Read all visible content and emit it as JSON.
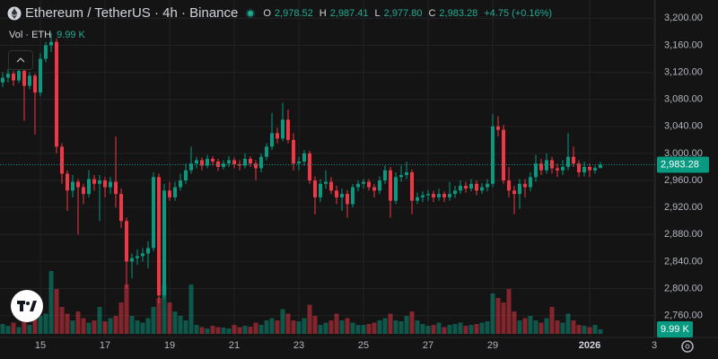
{
  "header": {
    "symbol": "Ethereum / TetherUS · 4h · Binance",
    "o_key": "O",
    "open": "2,978.52",
    "h_key": "H",
    "high": "2,987.41",
    "l_key": "L",
    "low": "2,977.80",
    "c_key": "C",
    "close": "2,983.28",
    "change": "+4.75 (+0.16%)",
    "vol_title": "Vol · ETH",
    "vol_value": "9.99 K"
  },
  "chart_data": {
    "type": "candlestick",
    "ylim": [
      2729,
      3227
    ],
    "yticks": [
      {
        "value": 3200,
        "label": "3,200.00"
      },
      {
        "value": 3160,
        "label": "3,160.00"
      },
      {
        "value": 3120,
        "label": "3,120.00"
      },
      {
        "value": 3080,
        "label": "3,080.00"
      },
      {
        "value": 3040,
        "label": "3,040.00"
      },
      {
        "value": 3000,
        "label": "3,000.00"
      },
      {
        "value": 2960,
        "label": "2,960.00"
      },
      {
        "value": 2920,
        "label": "2,920.00"
      },
      {
        "value": 2880,
        "label": "2,880.00"
      },
      {
        "value": 2840,
        "label": "2,840.00"
      },
      {
        "value": 2800,
        "label": "2,800.00"
      },
      {
        "value": 2760,
        "label": "2,760.00"
      }
    ],
    "xticks": [
      {
        "value": 7,
        "label": "15"
      },
      {
        "value": 19,
        "label": "17"
      },
      {
        "value": 31,
        "label": "19"
      },
      {
        "value": 43,
        "label": "21"
      },
      {
        "value": 55,
        "label": "23"
      },
      {
        "value": 67,
        "label": "25"
      },
      {
        "value": 79,
        "label": "27"
      },
      {
        "value": 91,
        "label": "29"
      },
      {
        "value": 109,
        "label": "2026"
      },
      {
        "value": 121,
        "label": "3"
      }
    ],
    "up_color": "#089981",
    "down_color": "#f23645",
    "grid": true,
    "vlim": [
      0,
      150
    ],
    "volume_label": "9.99 K",
    "ohlc": [
      [
        3105,
        3120,
        3098,
        3112
      ],
      [
        3112,
        3125,
        3105,
        3118
      ],
      [
        3118,
        3122,
        3100,
        3108
      ],
      [
        3108,
        3130,
        3104,
        3122
      ],
      [
        3122,
        3126,
        3048,
        3100
      ],
      [
        3100,
        3120,
        3095,
        3115
      ],
      [
        3115,
        3118,
        3028,
        3090
      ],
      [
        3090,
        3148,
        3085,
        3140
      ],
      [
        3140,
        3165,
        3135,
        3160
      ],
      [
        3160,
        3178,
        3150,
        3165
      ],
      [
        3165,
        3170,
        3000,
        3010
      ],
      [
        3010,
        3015,
        2955,
        2970
      ],
      [
        2970,
        2975,
        2915,
        2945
      ],
      [
        2945,
        2968,
        2935,
        2958
      ],
      [
        2958,
        2962,
        2880,
        2950
      ],
      [
        2950,
        2955,
        2925,
        2940
      ],
      [
        2940,
        2975,
        2935,
        2962
      ],
      [
        2962,
        2968,
        2945,
        2955
      ],
      [
        2955,
        2968,
        2900,
        2960
      ],
      [
        2960,
        2965,
        2935,
        2950
      ],
      [
        2950,
        2965,
        2940,
        2958
      ],
      [
        2958,
        3025,
        2920,
        2940
      ],
      [
        2940,
        2948,
        2890,
        2900
      ],
      [
        2900,
        2905,
        2800,
        2840
      ],
      [
        2840,
        2852,
        2815,
        2845
      ],
      [
        2845,
        2858,
        2835,
        2848
      ],
      [
        2848,
        2860,
        2840,
        2852
      ],
      [
        2852,
        2870,
        2830,
        2860
      ],
      [
        2860,
        2972,
        2855,
        2965
      ],
      [
        2965,
        2970,
        2778,
        2790
      ],
      [
        2790,
        2955,
        2785,
        2945
      ],
      [
        2945,
        2958,
        2930,
        2935
      ],
      [
        2935,
        2958,
        2930,
        2950
      ],
      [
        2950,
        2970,
        2945,
        2960
      ],
      [
        2960,
        2985,
        2955,
        2975
      ],
      [
        2975,
        3010,
        2970,
        2985
      ],
      [
        2985,
        2995,
        2978,
        2990
      ],
      [
        2990,
        2994,
        2975,
        2982
      ],
      [
        2982,
        2998,
        2978,
        2992
      ],
      [
        2992,
        2996,
        2982,
        2988
      ],
      [
        2988,
        2992,
        2974,
        2980
      ],
      [
        2980,
        2990,
        2976,
        2985
      ],
      [
        2985,
        2996,
        2980,
        2990
      ],
      [
        2990,
        2994,
        2978,
        2984
      ],
      [
        2984,
        2990,
        2975,
        2982
      ],
      [
        2982,
        3000,
        2978,
        2992
      ],
      [
        2992,
        2996,
        2980,
        2985
      ],
      [
        2985,
        2990,
        2960,
        2978
      ],
      [
        2978,
        3000,
        2972,
        2995
      ],
      [
        2995,
        3015,
        2990,
        3010
      ],
      [
        3010,
        3060,
        3005,
        3030
      ],
      [
        3030,
        3038,
        3015,
        3022
      ],
      [
        3022,
        3075,
        3018,
        3050
      ],
      [
        3050,
        3065,
        3015,
        3020
      ],
      [
        3020,
        3030,
        2975,
        2985
      ],
      [
        2985,
        2995,
        2975,
        2988
      ],
      [
        2988,
        3005,
        2982,
        3000
      ],
      [
        3000,
        3004,
        2955,
        2960
      ],
      [
        2960,
        2966,
        2910,
        2935
      ],
      [
        2935,
        2962,
        2928,
        2955
      ],
      [
        2955,
        2975,
        2948,
        2958
      ],
      [
        2958,
        2965,
        2940,
        2945
      ],
      [
        2945,
        2952,
        2925,
        2935
      ],
      [
        2935,
        2948,
        2915,
        2940
      ],
      [
        2940,
        2946,
        2905,
        2925
      ],
      [
        2925,
        2955,
        2920,
        2950
      ],
      [
        2950,
        2960,
        2944,
        2955
      ],
      [
        2955,
        2962,
        2948,
        2958
      ],
      [
        2958,
        2962,
        2945,
        2950
      ],
      [
        2950,
        2955,
        2935,
        2945
      ],
      [
        2945,
        2966,
        2940,
        2960
      ],
      [
        2960,
        2982,
        2955,
        2975
      ],
      [
        2975,
        2980,
        2905,
        2930
      ],
      [
        2930,
        2972,
        2925,
        2965
      ],
      [
        2965,
        2982,
        2958,
        2968
      ],
      [
        2968,
        2988,
        2962,
        2972
      ],
      [
        2972,
        2976,
        2910,
        2930
      ],
      [
        2930,
        2942,
        2925,
        2935
      ],
      [
        2935,
        2944,
        2928,
        2938
      ],
      [
        2938,
        2946,
        2930,
        2940
      ],
      [
        2940,
        2945,
        2928,
        2935
      ],
      [
        2935,
        2948,
        2930,
        2940
      ],
      [
        2940,
        2944,
        2928,
        2935
      ],
      [
        2935,
        2958,
        2930,
        2940
      ],
      [
        2940,
        2952,
        2934,
        2945
      ],
      [
        2945,
        2960,
        2940,
        2952
      ],
      [
        2952,
        2958,
        2942,
        2948
      ],
      [
        2948,
        2962,
        2944,
        2955
      ],
      [
        2955,
        2960,
        2938,
        2945
      ],
      [
        2945,
        2956,
        2940,
        2950
      ],
      [
        2950,
        2962,
        2944,
        2955
      ],
      [
        2955,
        3058,
        2950,
        3040
      ],
      [
        3040,
        3055,
        3025,
        3035
      ],
      [
        3035,
        3042,
        2955,
        2960
      ],
      [
        2960,
        2980,
        2935,
        2945
      ],
      [
        2945,
        2952,
        2910,
        2940
      ],
      [
        2940,
        2962,
        2918,
        2955
      ],
      [
        2955,
        2962,
        2935,
        2950
      ],
      [
        2950,
        2972,
        2944,
        2965
      ],
      [
        2965,
        2998,
        2958,
        2985
      ],
      [
        2985,
        2992,
        2968,
        2975
      ],
      [
        2975,
        3000,
        2970,
        2990
      ],
      [
        2990,
        2995,
        2970,
        2978
      ],
      [
        2978,
        2985,
        2965,
        2975
      ],
      [
        2975,
        2990,
        2968,
        2980
      ],
      [
        2980,
        3030,
        2975,
        2995
      ],
      [
        2995,
        3010,
        2980,
        2985
      ],
      [
        2985,
        2990,
        2965,
        2972
      ],
      [
        2972,
        2988,
        2966,
        2980
      ],
      [
        2980,
        2985,
        2965,
        2975
      ],
      [
        2975,
        2982,
        2970,
        2978.52
      ],
      [
        2978.52,
        2987.41,
        2977.8,
        2983.28
      ]
    ],
    "volumes": [
      22,
      18,
      25,
      15,
      30,
      20,
      35,
      40,
      45,
      140,
      100,
      60,
      45,
      30,
      50,
      35,
      25,
      30,
      60,
      28,
      35,
      40,
      70,
      110,
      40,
      30,
      25,
      35,
      60,
      80,
      110,
      70,
      50,
      40,
      30,
      110,
      20,
      15,
      12,
      18,
      15,
      14,
      12,
      20,
      15,
      18,
      16,
      25,
      20,
      30,
      35,
      30,
      55,
      45,
      30,
      28,
      35,
      65,
      40,
      20,
      25,
      30,
      45,
      30,
      35,
      25,
      20,
      20,
      22,
      25,
      30,
      35,
      45,
      30,
      28,
      40,
      50,
      30,
      22,
      18,
      20,
      25,
      15,
      20,
      22,
      25,
      18,
      20,
      22,
      25,
      28,
      90,
      80,
      70,
      100,
      50,
      30,
      35,
      40,
      30,
      25,
      35,
      60,
      30,
      25,
      45,
      30,
      20,
      18,
      15,
      20,
      9.99
    ]
  }
}
